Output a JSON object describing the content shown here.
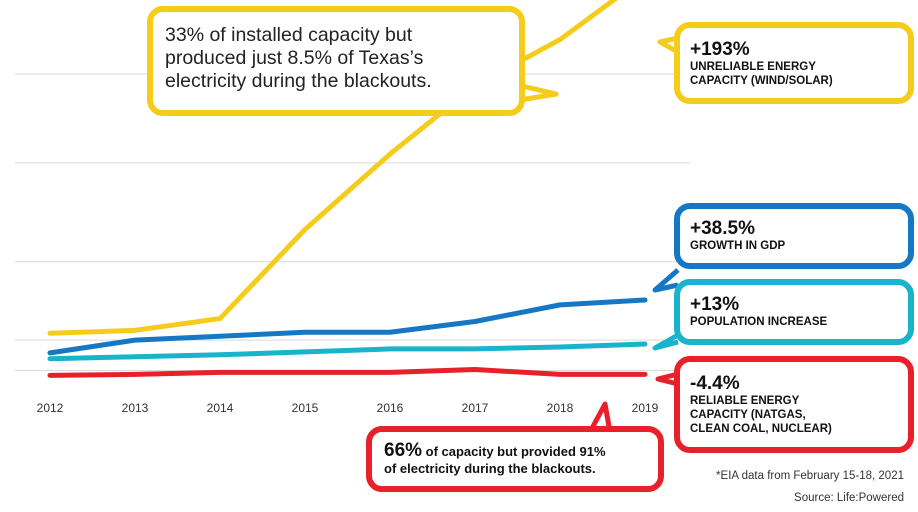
{
  "chart_data": {
    "type": "line",
    "x": [
      "2012",
      "2013",
      "2014",
      "2015",
      "2016",
      "2017",
      "2018",
      "2019"
    ],
    "series": [
      {
        "key": "wind_solar",
        "color": "#f5cc1b",
        "values": [
          0,
          3,
          15,
          106,
          183,
          253,
          300,
          364
        ]
      },
      {
        "key": "gdp",
        "color": "#1677c4",
        "values": [
          -20,
          -7,
          -3,
          1,
          1,
          12,
          29,
          34
        ]
      },
      {
        "key": "population",
        "color": "#19b3cc",
        "values": [
          -26,
          -24,
          -22,
          -19,
          -16,
          -16,
          -14,
          -11
        ]
      },
      {
        "key": "reliable",
        "color": "#e8202a",
        "values": [
          -43,
          -42,
          -40,
          -40,
          -40,
          -37,
          -42,
          -42
        ]
      }
    ],
    "gridlines": [
      -38,
      -7,
      73,
      174,
      265
    ],
    "ylim": [
      -60,
      320
    ],
    "grid": true,
    "legend": "right"
  },
  "labels": {
    "wind_solar": {
      "pct": "+193%",
      "line1": "UNRELIABLE ENERGY",
      "line2": "CAPACITY (WIND/SOLAR)"
    },
    "gdp": {
      "pct": "+38.5%",
      "line1": "GROWTH IN GDP"
    },
    "population": {
      "pct": "+13%",
      "line1": "POPULATION INCREASE"
    },
    "reliable": {
      "pct": "-4.4%",
      "line1": "RELIABLE ENERGY",
      "line2": "CAPACITY (NATGAS,",
      "line3": "CLEAN COAL, NUCLEAR)"
    }
  },
  "callouts": {
    "wind_solar": {
      "line1": "33% of installed capacity but",
      "line2": "produced just 8.5% of Texas’s",
      "line3": "electricity during the blackouts."
    },
    "reliable": {
      "pct": "66%",
      "line1_rest": " of capacity but provided 91%",
      "line2": "of electricity during the blackouts."
    }
  },
  "footnote": "*EIA data from February 15-18, 2021",
  "source": "Source: Life:Powered"
}
